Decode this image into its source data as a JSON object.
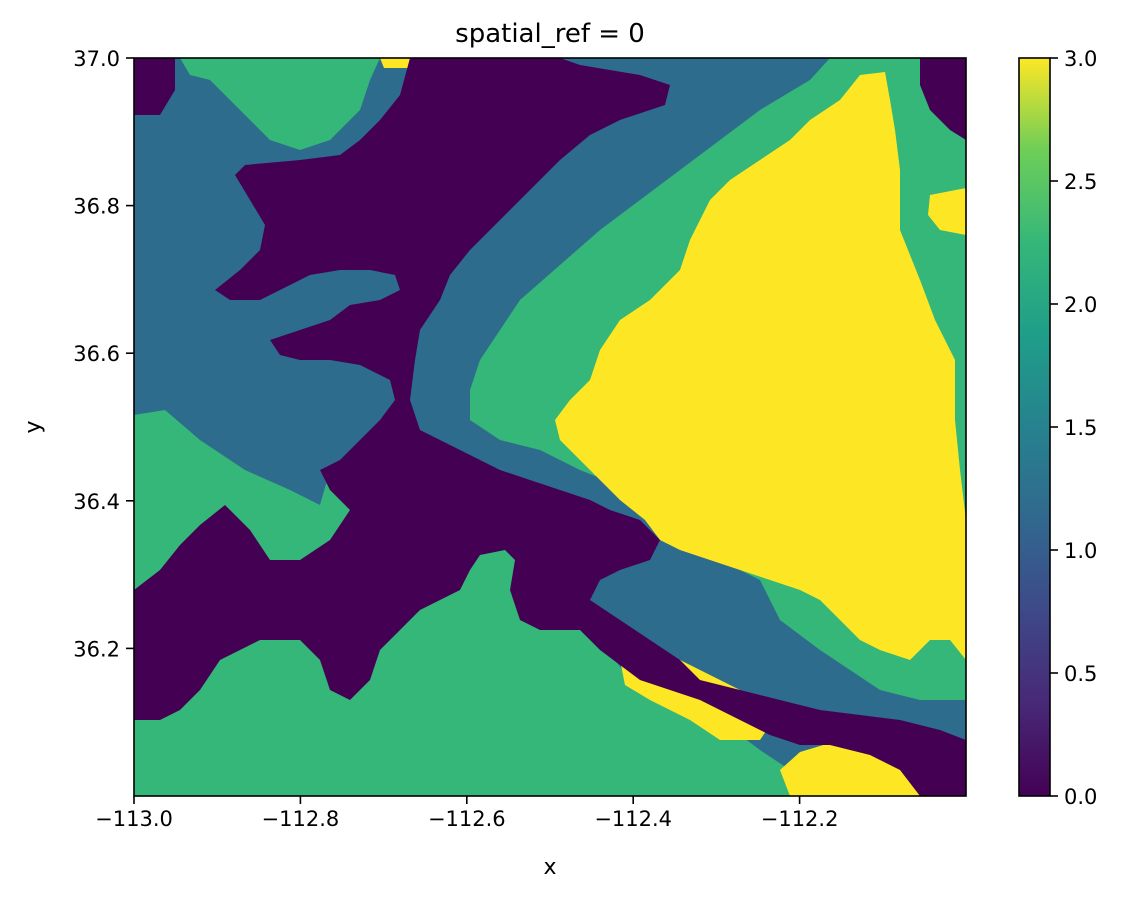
{
  "chart_data": {
    "type": "heatmap",
    "title": "spatial_ref = 0",
    "xlabel": "x",
    "ylabel": "y",
    "xlim": [
      -113.0,
      -112.0
    ],
    "ylim": [
      36.0,
      37.0
    ],
    "xticks": [
      -113.0,
      -112.8,
      -112.6,
      -112.4,
      -112.2
    ],
    "xtick_labels": [
      "−113.0",
      "−112.8",
      "−112.6",
      "−112.4",
      "−112.2"
    ],
    "yticks": [
      36.2,
      36.4,
      36.6,
      36.8,
      37.0
    ],
    "ytick_labels": [
      "36.2",
      "36.4",
      "36.6",
      "36.8",
      "37.0"
    ],
    "colormap": "viridis",
    "color_range": [
      0.0,
      3.0
    ],
    "colorbar_ticks": [
      0.0,
      0.5,
      1.0,
      1.5,
      2.0,
      2.5,
      3.0
    ],
    "colorbar_tick_labels": [
      "0.0",
      "0.5",
      "1.0",
      "1.5",
      "2.0",
      "2.5",
      "3.0"
    ],
    "class_colors": {
      "0": "#440154",
      "1": "#2e6c8e",
      "2": "#35b779",
      "3": "#fde725"
    },
    "grid": false,
    "legend": "colorbar-right"
  }
}
